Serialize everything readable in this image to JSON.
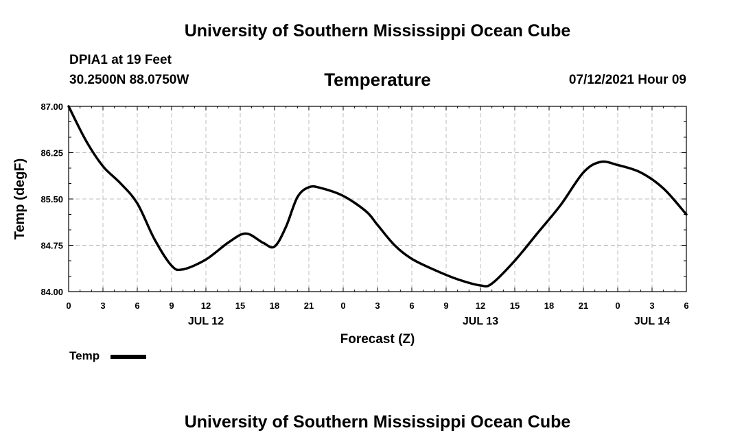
{
  "header": {
    "title_top": "University of Southern Mississippi Ocean Cube",
    "station": "DPIA1 at 19 Feet",
    "coords": "30.2500N  88.0750W",
    "datetime": "07/12/2021 Hour 09",
    "title_bottom": "University of Southern Mississippi Ocean Cube"
  },
  "legend": {
    "label": "Temp",
    "color": "#000000"
  },
  "chart_data": {
    "type": "line",
    "title": "Temperature",
    "xlabel": "Forecast (Z)",
    "ylabel": "Temp (degF)",
    "ylim": [
      84.0,
      87.0
    ],
    "xlim": [
      0,
      54
    ],
    "grid": true,
    "legend_position": "bottom-left",
    "y_ticks": [
      "87.00",
      "86.25",
      "85.50",
      "84.75",
      "84.00"
    ],
    "x_ticks": [
      "0",
      "3",
      "6",
      "9",
      "12",
      "15",
      "18",
      "21",
      "0",
      "3",
      "6",
      "9",
      "12",
      "15",
      "18",
      "21",
      "0",
      "3",
      "6"
    ],
    "date_labels": [
      {
        "label": "JUL 12",
        "x": 12
      },
      {
        "label": "JUL 13",
        "x": 36
      },
      {
        "label": "JUL 14",
        "x": 51
      }
    ],
    "series": [
      {
        "name": "Temp",
        "x": [
          0,
          1.5,
          3,
          4.5,
          6,
          7.5,
          9,
          10,
          12,
          14,
          15.5,
          17,
          18,
          19,
          20,
          21,
          22,
          24,
          26,
          27,
          28.5,
          30,
          32,
          34,
          36,
          37,
          39,
          41,
          43,
          45,
          46.5,
          48,
          50,
          52,
          54
        ],
        "y": [
          87.0,
          86.45,
          86.03,
          85.76,
          85.43,
          84.85,
          84.42,
          84.36,
          84.52,
          84.8,
          84.94,
          84.79,
          84.73,
          85.05,
          85.53,
          85.69,
          85.68,
          85.55,
          85.3,
          85.08,
          84.75,
          84.53,
          84.35,
          84.2,
          84.1,
          84.13,
          84.5,
          84.95,
          85.4,
          85.93,
          86.1,
          86.05,
          85.93,
          85.67,
          85.25
        ]
      }
    ]
  }
}
